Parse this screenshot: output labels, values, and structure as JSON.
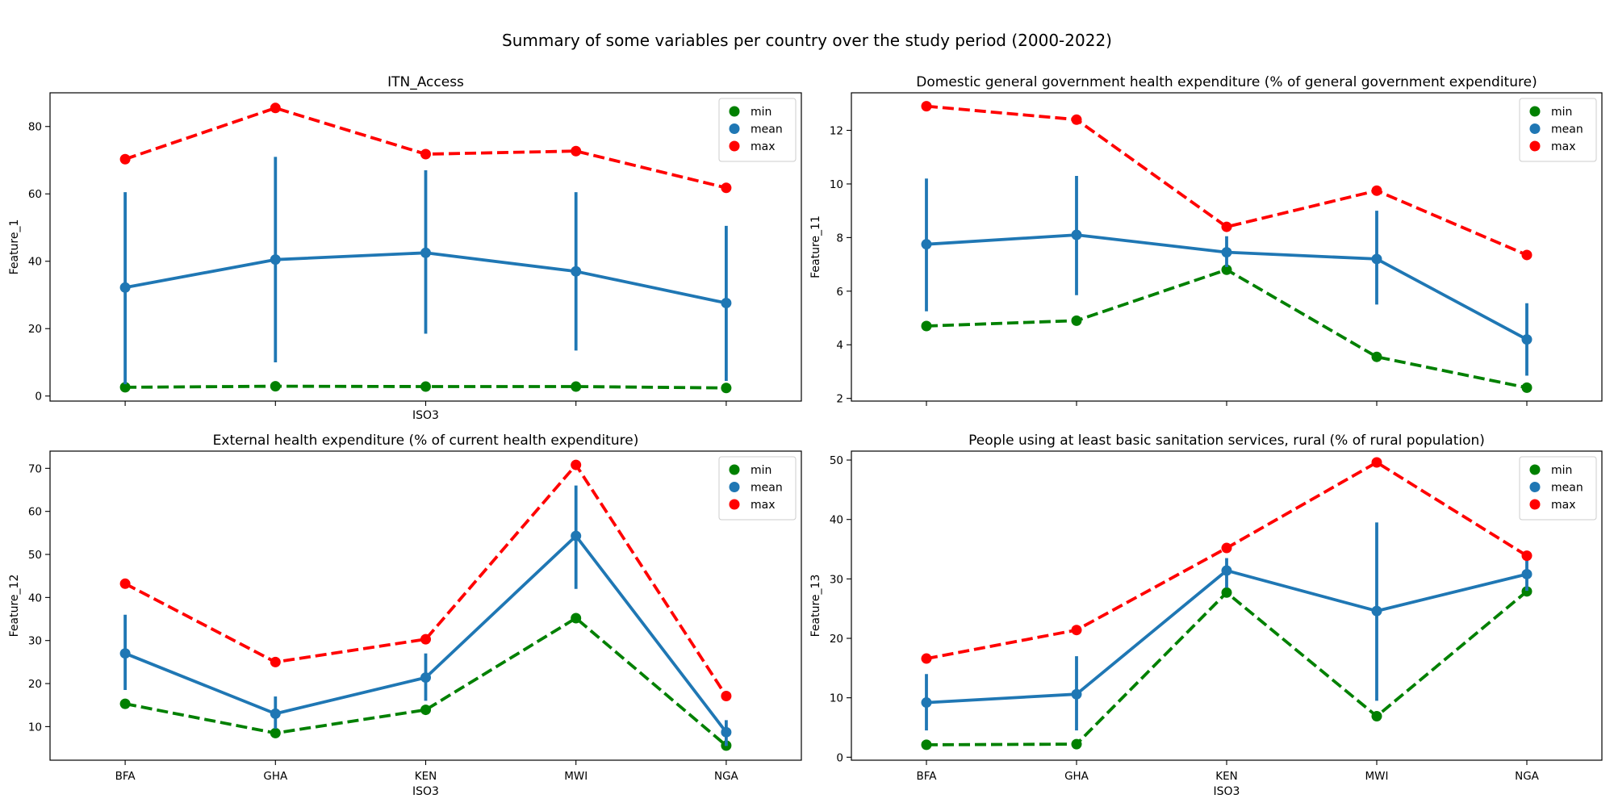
{
  "figure": {
    "suptitle": "Summary of some variables per country over the study period (2000-2022)",
    "colors": {
      "min": "#008000",
      "mean": "#1f77b4",
      "max": "#ff0000"
    }
  },
  "chart_data": [
    {
      "type": "line",
      "title": "ITN_Access",
      "xlabel": "ISO3",
      "ylabel": "Feature_1",
      "categories": [
        "BFA",
        "GHA",
        "KEN",
        "MWI",
        "NGA"
      ],
      "show_xticklabels": false,
      "ylim": [
        -1.5,
        90
      ],
      "yticks": [
        0,
        20,
        40,
        60,
        80
      ],
      "legend": {
        "placement": "upper right",
        "entries": [
          "min",
          "mean",
          "max"
        ]
      },
      "series": [
        {
          "name": "min",
          "style": "dashed",
          "values": [
            2.6,
            2.9,
            2.8,
            2.8,
            2.4
          ]
        },
        {
          "name": "mean",
          "style": "solid",
          "values": [
            32.2,
            40.5,
            42.5,
            37.0,
            27.6
          ],
          "ci_low": [
            3.5,
            10.0,
            18.5,
            13.5,
            4.5
          ],
          "ci_high": [
            60.5,
            71.0,
            67.0,
            60.5,
            50.5
          ]
        },
        {
          "name": "max",
          "style": "dashed",
          "values": [
            70.3,
            85.5,
            71.8,
            72.7,
            61.8
          ]
        }
      ]
    },
    {
      "type": "line",
      "title": "Domestic general government health expenditure (% of general government expenditure)",
      "xlabel": "",
      "ylabel": "Feature_11",
      "categories": [
        "BFA",
        "GHA",
        "KEN",
        "MWI",
        "NGA"
      ],
      "show_xticklabels": false,
      "ylim": [
        1.9,
        13.4
      ],
      "yticks": [
        2,
        4,
        6,
        8,
        10,
        12
      ],
      "legend": {
        "placement": "upper right",
        "entries": [
          "min",
          "mean",
          "max"
        ]
      },
      "series": [
        {
          "name": "min",
          "style": "dashed",
          "values": [
            4.7,
            4.9,
            6.8,
            3.55,
            2.4
          ]
        },
        {
          "name": "mean",
          "style": "solid",
          "values": [
            7.75,
            8.1,
            7.45,
            7.2,
            4.2
          ],
          "ci_low": [
            5.25,
            5.85,
            6.9,
            5.5,
            2.85
          ],
          "ci_high": [
            10.2,
            10.3,
            8.05,
            9.0,
            5.55
          ]
        },
        {
          "name": "max",
          "style": "dashed",
          "values": [
            12.9,
            12.4,
            8.4,
            9.75,
            7.35
          ]
        }
      ]
    },
    {
      "type": "line",
      "title": "External health expenditure (% of current health expenditure)",
      "xlabel": "ISO3",
      "ylabel": "Feature_12",
      "categories": [
        "BFA",
        "GHA",
        "KEN",
        "MWI",
        "NGA"
      ],
      "show_xticklabels": true,
      "ylim": [
        2.2,
        74
      ],
      "yticks": [
        10,
        20,
        30,
        40,
        50,
        60,
        70
      ],
      "legend": {
        "placement": "upper right",
        "entries": [
          "min",
          "mean",
          "max"
        ]
      },
      "series": [
        {
          "name": "min",
          "style": "dashed",
          "values": [
            15.3,
            8.5,
            13.9,
            35.2,
            5.6
          ]
        },
        {
          "name": "mean",
          "style": "solid",
          "values": [
            27.0,
            13.0,
            21.4,
            54.3,
            8.7
          ],
          "ci_low": [
            18.5,
            9.5,
            16.0,
            42.0,
            5.5
          ],
          "ci_high": [
            36.0,
            17.0,
            27.0,
            66.0,
            11.5
          ]
        },
        {
          "name": "max",
          "style": "dashed",
          "values": [
            43.2,
            25.0,
            30.3,
            70.8,
            17.1
          ]
        }
      ]
    },
    {
      "type": "line",
      "title": "People using at least basic sanitation services, rural (% of rural population)",
      "xlabel": "ISO3",
      "ylabel": "Feature_13",
      "categories": [
        "BFA",
        "GHA",
        "KEN",
        "MWI",
        "NGA"
      ],
      "show_xticklabels": true,
      "ylim": [
        -0.5,
        51.5
      ],
      "yticks": [
        0,
        10,
        20,
        30,
        40,
        50
      ],
      "legend": {
        "placement": "upper right",
        "entries": [
          "min",
          "mean",
          "max"
        ]
      },
      "series": [
        {
          "name": "min",
          "style": "dashed",
          "values": [
            2.1,
            2.2,
            27.7,
            6.9,
            27.9
          ]
        },
        {
          "name": "mean",
          "style": "solid",
          "values": [
            9.2,
            10.6,
            31.4,
            24.6,
            30.8
          ],
          "ci_low": [
            4.5,
            4.5,
            28.5,
            9.5,
            28.0
          ],
          "ci_high": [
            14.0,
            17.0,
            33.5,
            39.5,
            33.5
          ]
        },
        {
          "name": "max",
          "style": "dashed",
          "values": [
            16.6,
            21.4,
            35.2,
            49.6,
            33.9
          ]
        }
      ]
    }
  ]
}
